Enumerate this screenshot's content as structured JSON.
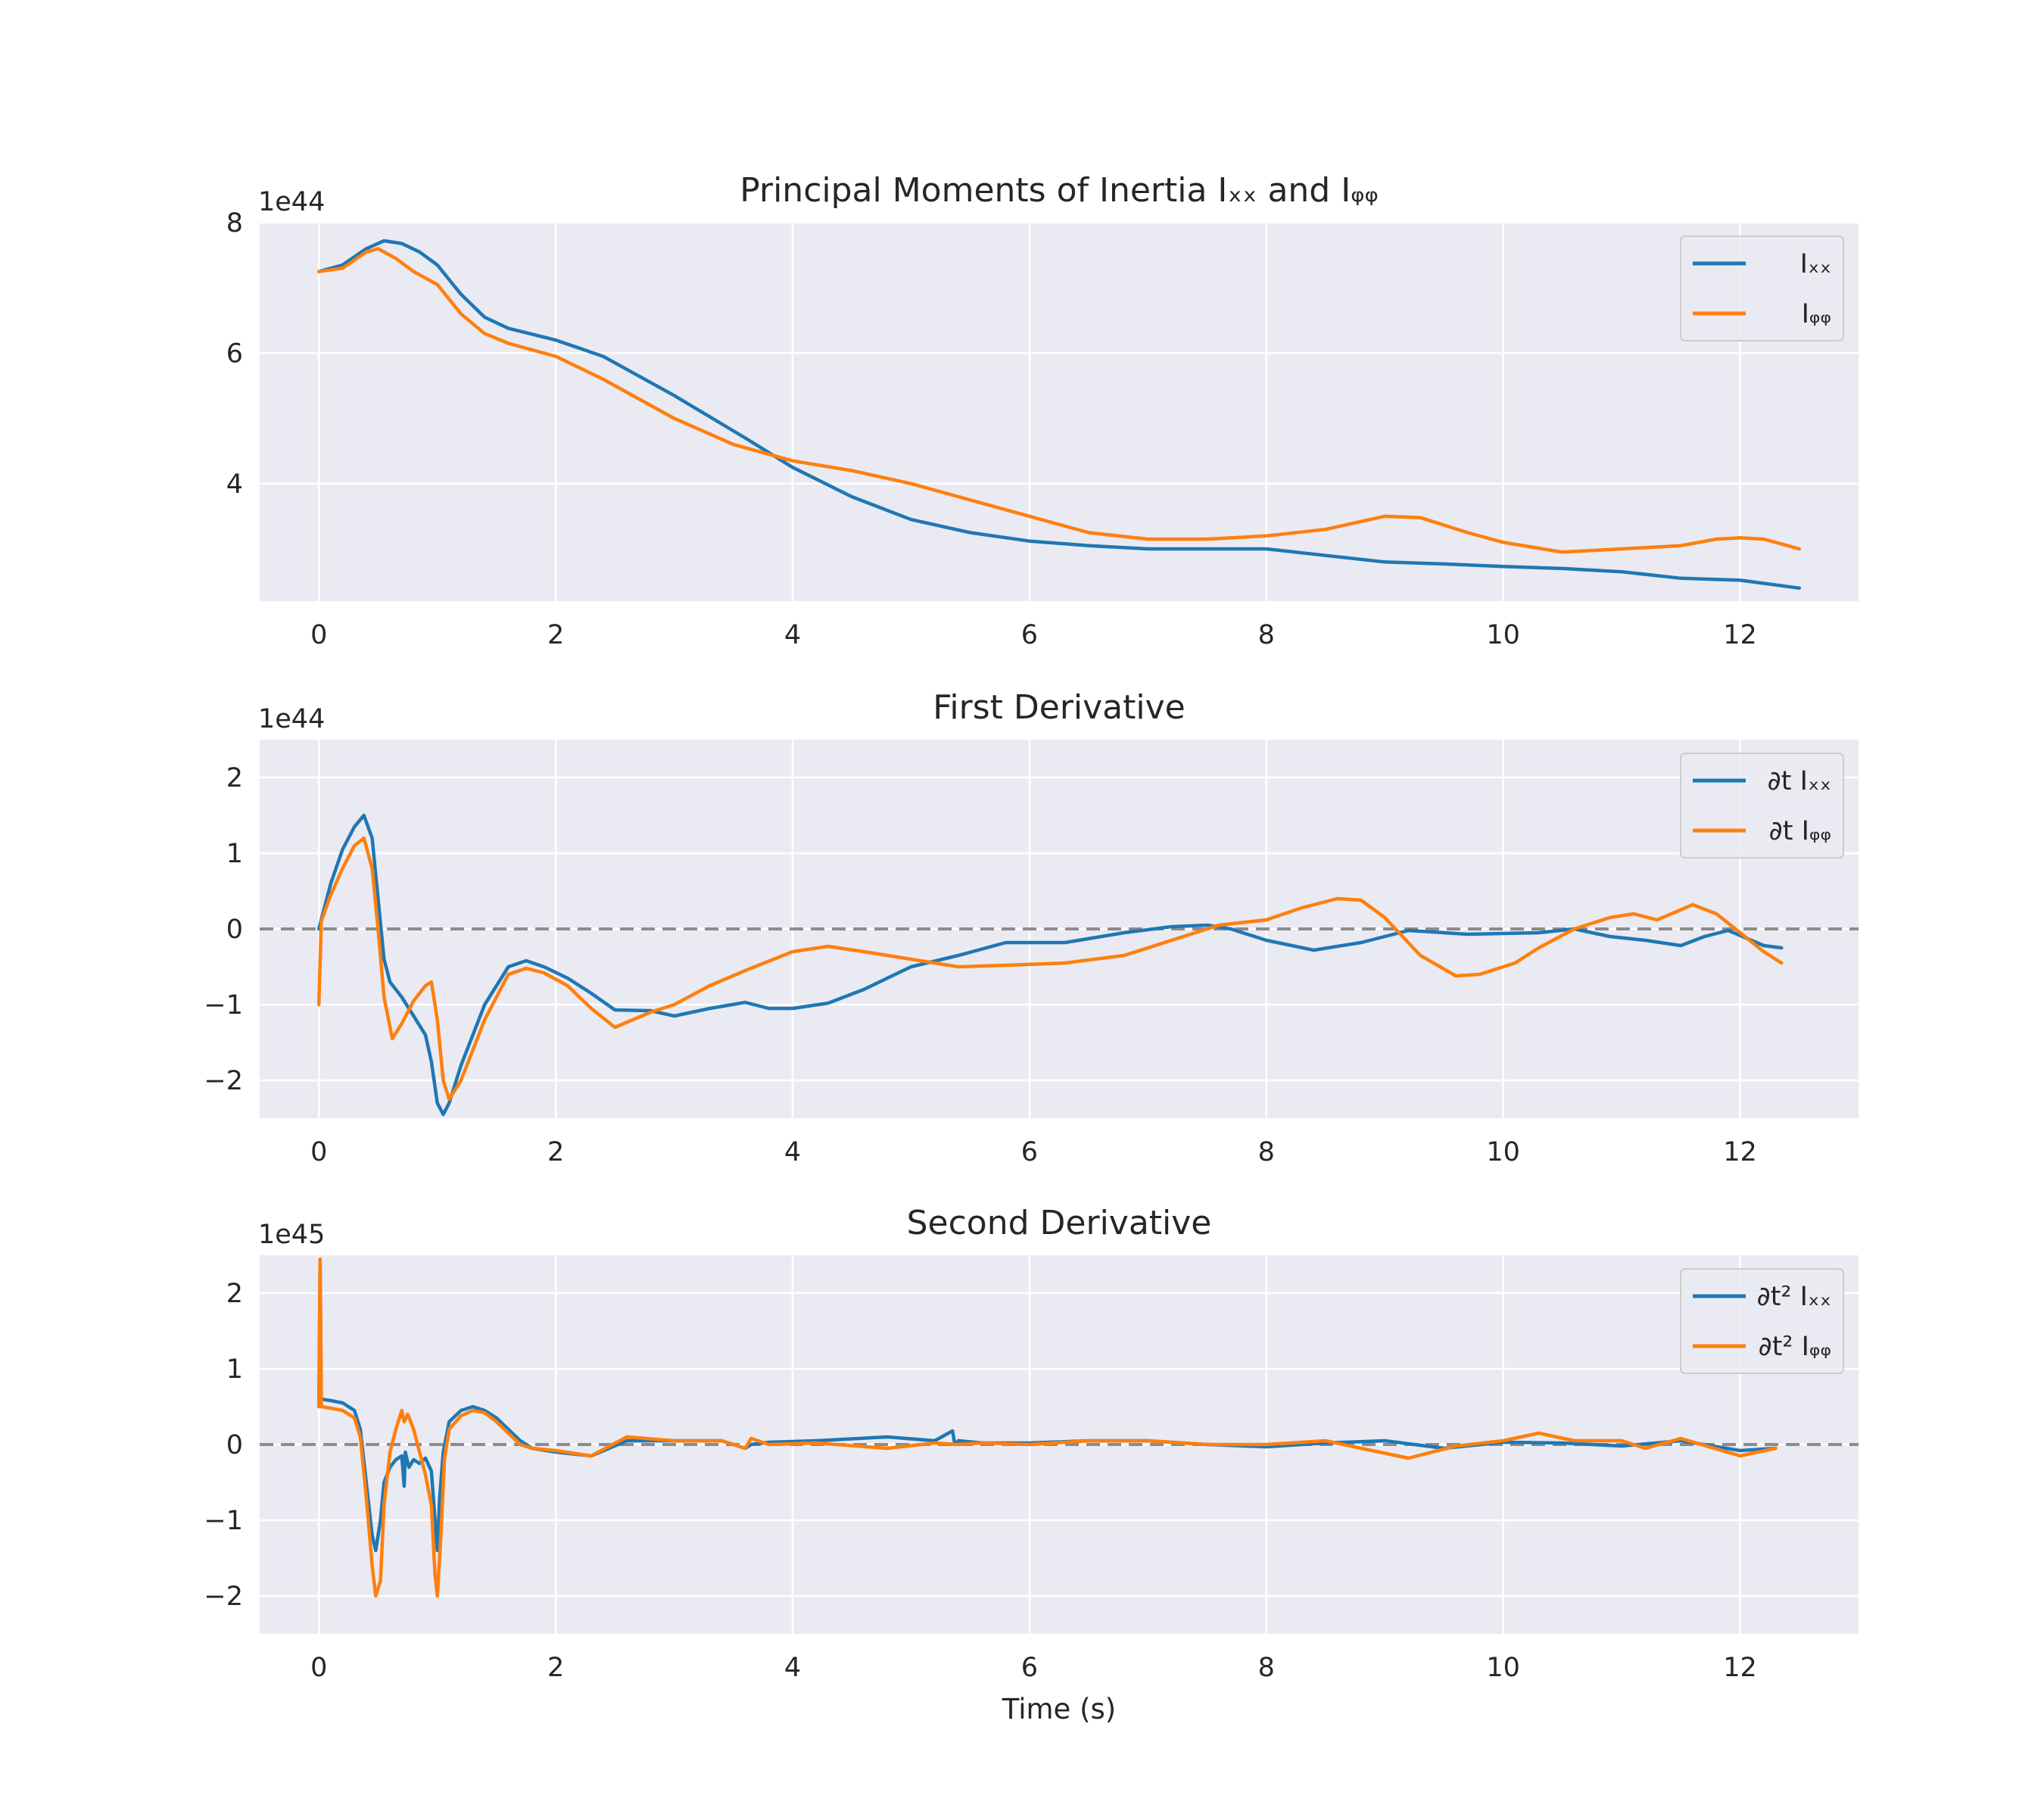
{
  "colors": {
    "blue": "#1f77b4",
    "orange": "#ff7f0e",
    "zero_line": "#8c8c8c",
    "axes_bg": "#eaeaf2"
  },
  "chart_data": [
    {
      "type": "line",
      "title": "Principal Moments of Inertia Iₓₓ and Iᵩᵩ",
      "offset_text": "1e44",
      "xlabel": "",
      "ylabel": "",
      "xlim": [
        -0.5,
        13.0
      ],
      "ylim": [
        2.2,
        8.0
      ],
      "xticks": [
        0,
        2,
        4,
        6,
        8,
        10,
        12
      ],
      "yticks": [
        4,
        6,
        8
      ],
      "grid": true,
      "legend_position": "top-right",
      "zero_line": false,
      "series": [
        {
          "name": "Iₓₓ",
          "color": "#1f77b4",
          "x": [
            0,
            0.2,
            0.4,
            0.55,
            0.7,
            0.85,
            1.0,
            1.2,
            1.4,
            1.6,
            2.0,
            2.4,
            3.0,
            3.6,
            4.0,
            4.5,
            5.0,
            5.5,
            6.0,
            6.5,
            7.0,
            7.5,
            8.0,
            8.5,
            9.0,
            9.5,
            10.0,
            10.5,
            11.0,
            11.5,
            12.0,
            12.5
          ],
          "y": [
            7.25,
            7.35,
            7.6,
            7.72,
            7.68,
            7.55,
            7.35,
            6.9,
            6.55,
            6.38,
            6.2,
            5.95,
            5.35,
            4.7,
            4.25,
            3.8,
            3.45,
            3.25,
            3.12,
            3.05,
            3.0,
            3.0,
            3.0,
            2.9,
            2.8,
            2.77,
            2.73,
            2.7,
            2.65,
            2.55,
            2.52,
            2.4
          ]
        },
        {
          "name": "Iᵩᵩ",
          "color": "#ff7f0e",
          "x": [
            0,
            0.2,
            0.4,
            0.5,
            0.65,
            0.8,
            1.0,
            1.2,
            1.4,
            1.6,
            2.0,
            2.4,
            3.0,
            3.5,
            4.0,
            4.5,
            5.0,
            5.5,
            6.0,
            6.5,
            7.0,
            7.5,
            8.0,
            8.5,
            9.0,
            9.3,
            9.7,
            10.0,
            10.5,
            11.0,
            11.5,
            11.8,
            12.0,
            12.2,
            12.5
          ],
          "y": [
            7.25,
            7.3,
            7.55,
            7.6,
            7.45,
            7.25,
            7.05,
            6.6,
            6.3,
            6.15,
            5.95,
            5.6,
            5.0,
            4.6,
            4.35,
            4.2,
            4.0,
            3.75,
            3.5,
            3.25,
            3.15,
            3.15,
            3.2,
            3.3,
            3.5,
            3.48,
            3.25,
            3.1,
            2.95,
            3.0,
            3.05,
            3.15,
            3.17,
            3.15,
            3.0
          ]
        }
      ]
    },
    {
      "type": "line",
      "title": "First Derivative",
      "offset_text": "1e44",
      "xlabel": "",
      "ylabel": "",
      "xlim": [
        -0.5,
        13.0
      ],
      "ylim": [
        -2.5,
        2.5
      ],
      "xticks": [
        0,
        2,
        4,
        6,
        8,
        10,
        12
      ],
      "yticks": [
        -2,
        -1,
        0,
        1,
        2
      ],
      "grid": true,
      "legend_position": "top-right",
      "zero_line": true,
      "series": [
        {
          "name": "∂t Iₓₓ",
          "color": "#1f77b4",
          "x": [
            0,
            0.1,
            0.2,
            0.3,
            0.38,
            0.45,
            0.5,
            0.55,
            0.6,
            0.7,
            0.8,
            0.9,
            0.95,
            1.0,
            1.05,
            1.1,
            1.2,
            1.4,
            1.6,
            1.75,
            1.9,
            2.1,
            2.3,
            2.5,
            2.8,
            3.0,
            3.3,
            3.6,
            3.8,
            4.0,
            4.3,
            4.6,
            5.0,
            5.4,
            5.8,
            6.3,
            6.8,
            7.2,
            7.5,
            7.7,
            8.0,
            8.4,
            8.8,
            9.2,
            9.7,
            10.3,
            10.6,
            10.9,
            11.2,
            11.5,
            11.7,
            11.9,
            12.2,
            12.35
          ],
          "y": [
            0,
            0.6,
            1.05,
            1.35,
            1.5,
            1.2,
            0.4,
            -0.4,
            -0.7,
            -0.9,
            -1.15,
            -1.4,
            -1.75,
            -2.3,
            -2.45,
            -2.3,
            -1.8,
            -1.0,
            -0.5,
            -0.42,
            -0.5,
            -0.65,
            -0.85,
            -1.07,
            -1.08,
            -1.15,
            -1.05,
            -0.97,
            -1.05,
            -1.05,
            -0.98,
            -0.8,
            -0.5,
            -0.35,
            -0.18,
            -0.18,
            -0.05,
            0.03,
            0.05,
            0.0,
            -0.15,
            -0.28,
            -0.18,
            -0.02,
            -0.07,
            -0.05,
            0.0,
            -0.1,
            -0.15,
            -0.22,
            -0.1,
            -0.02,
            -0.22,
            -0.25
          ]
        },
        {
          "name": "∂t Iᵩᵩ",
          "color": "#ff7f0e",
          "x": [
            0,
            0.02,
            0.1,
            0.2,
            0.3,
            0.38,
            0.45,
            0.5,
            0.55,
            0.62,
            0.7,
            0.8,
            0.9,
            0.95,
            1.0,
            1.05,
            1.1,
            1.2,
            1.4,
            1.6,
            1.75,
            1.9,
            2.1,
            2.3,
            2.5,
            2.8,
            3.0,
            3.3,
            3.6,
            4.0,
            4.3,
            4.6,
            5.0,
            5.4,
            5.8,
            6.3,
            6.8,
            7.2,
            7.6,
            8.0,
            8.3,
            8.6,
            8.8,
            9.0,
            9.3,
            9.6,
            9.8,
            10.1,
            10.3,
            10.6,
            10.9,
            11.1,
            11.3,
            11.6,
            11.8,
            12.0,
            12.2,
            12.35
          ],
          "y": [
            -1.0,
            0.1,
            0.45,
            0.8,
            1.1,
            1.2,
            0.8,
            0.0,
            -0.9,
            -1.45,
            -1.25,
            -0.95,
            -0.75,
            -0.7,
            -1.2,
            -2.0,
            -2.25,
            -2.0,
            -1.2,
            -0.6,
            -0.52,
            -0.58,
            -0.75,
            -1.05,
            -1.3,
            -1.1,
            -1.0,
            -0.75,
            -0.55,
            -0.3,
            -0.23,
            -0.3,
            -0.4,
            -0.5,
            -0.48,
            -0.45,
            -0.35,
            -0.15,
            0.05,
            0.12,
            0.28,
            0.4,
            0.38,
            0.15,
            -0.35,
            -0.62,
            -0.6,
            -0.45,
            -0.25,
            0.0,
            0.15,
            0.2,
            0.12,
            0.32,
            0.2,
            -0.05,
            -0.3,
            -0.45
          ]
        }
      ]
    },
    {
      "type": "line",
      "title": "Second Derivative",
      "offset_text": "1e45",
      "xlabel": "Time (s)",
      "ylabel": "",
      "xlim": [
        -0.5,
        13.0
      ],
      "ylim": [
        -2.5,
        2.5
      ],
      "xticks": [
        0,
        2,
        4,
        6,
        8,
        10,
        12
      ],
      "yticks": [
        -2,
        -1,
        0,
        1,
        2
      ],
      "grid": true,
      "legend_position": "top-right",
      "zero_line": true,
      "series": [
        {
          "name": "∂t² Iₓₓ",
          "color": "#1f77b4",
          "x": [
            0,
            0.01,
            0.02,
            0.1,
            0.2,
            0.3,
            0.35,
            0.4,
            0.45,
            0.48,
            0.52,
            0.55,
            0.6,
            0.65,
            0.7,
            0.72,
            0.73,
            0.76,
            0.8,
            0.85,
            0.9,
            0.95,
            1.0,
            1.02,
            1.05,
            1.1,
            1.2,
            1.3,
            1.4,
            1.5,
            1.6,
            1.7,
            1.8,
            2.0,
            2.3,
            2.6,
            3.0,
            3.4,
            3.6,
            3.65,
            3.8,
            4.2,
            4.8,
            5.2,
            5.35,
            5.37,
            5.4,
            5.6,
            6.0,
            6.5,
            7.0,
            7.5,
            8.0,
            8.5,
            9.0,
            9.5,
            10.0,
            10.5,
            11.0,
            11.5,
            12.0,
            12.3
          ],
          "y": [
            0.5,
            2.45,
            0.6,
            0.58,
            0.55,
            0.45,
            0.2,
            -0.5,
            -1.2,
            -1.4,
            -1.0,
            -0.5,
            -0.3,
            -0.2,
            -0.15,
            -0.55,
            -0.1,
            -0.3,
            -0.2,
            -0.25,
            -0.18,
            -0.35,
            -1.4,
            -0.7,
            -0.1,
            0.3,
            0.45,
            0.5,
            0.45,
            0.35,
            0.2,
            0.05,
            -0.05,
            -0.1,
            -0.15,
            0.05,
            0.05,
            0.05,
            -0.05,
            0.0,
            0.03,
            0.05,
            0.1,
            0.05,
            0.18,
            0.0,
            0.05,
            0.02,
            0.02,
            0.05,
            0.05,
            0.0,
            -0.03,
            0.02,
            0.05,
            -0.05,
            0.03,
            0.02,
            -0.02,
            0.05,
            -0.08,
            -0.05
          ]
        },
        {
          "name": "∂t² Iᵩᵩ",
          "color": "#ff7f0e",
          "x": [
            0,
            0.01,
            0.02,
            0.1,
            0.2,
            0.3,
            0.35,
            0.4,
            0.45,
            0.48,
            0.52,
            0.55,
            0.6,
            0.65,
            0.7,
            0.72,
            0.75,
            0.8,
            0.85,
            0.9,
            0.95,
            0.98,
            1.0,
            1.03,
            1.06,
            1.1,
            1.2,
            1.3,
            1.4,
            1.5,
            1.6,
            1.7,
            1.8,
            2.0,
            2.3,
            2.6,
            3.0,
            3.4,
            3.6,
            3.65,
            3.8,
            4.2,
            4.8,
            5.2,
            5.4,
            5.6,
            6.0,
            6.5,
            7.0,
            7.5,
            8.0,
            8.5,
            8.8,
            9.2,
            9.6,
            10.0,
            10.3,
            10.6,
            11.0,
            11.2,
            11.5,
            12.0,
            12.3
          ],
          "y": [
            0.5,
            2.45,
            0.5,
            0.48,
            0.45,
            0.35,
            0.1,
            -0.7,
            -1.6,
            -2.0,
            -1.8,
            -0.8,
            -0.1,
            0.2,
            0.45,
            0.3,
            0.4,
            0.2,
            -0.1,
            -0.4,
            -0.8,
            -1.7,
            -2.0,
            -1.2,
            -0.2,
            0.2,
            0.38,
            0.45,
            0.42,
            0.3,
            0.15,
            0.0,
            -0.05,
            -0.08,
            -0.15,
            0.1,
            0.05,
            0.05,
            -0.05,
            0.08,
            0.0,
            0.02,
            -0.05,
            0.02,
            0.0,
            0.02,
            0.0,
            0.05,
            0.05,
            0.0,
            0.0,
            0.05,
            -0.05,
            -0.18,
            -0.02,
            0.05,
            0.15,
            0.05,
            0.05,
            -0.05,
            0.08,
            -0.15,
            -0.05
          ]
        }
      ]
    }
  ]
}
